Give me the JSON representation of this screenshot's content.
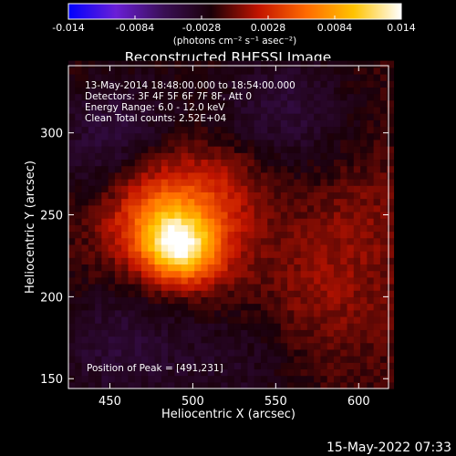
{
  "chart_data": {
    "type": "heatmap",
    "title": "Reconstructed RHESSI Image",
    "xlabel": "Heliocentric X (arcsec)",
    "ylabel": "Heliocentric Y (arcsec)",
    "xlim": [
      425,
      618
    ],
    "ylim": [
      144,
      341
    ],
    "xticks": [
      450,
      500,
      550,
      600
    ],
    "yticks": [
      150,
      200,
      250,
      300
    ],
    "colorbar": {
      "min": -0.014,
      "max": 0.014,
      "ticks": [
        "-0.014",
        "-0.0084",
        "-0.0028",
        "0.0028",
        "0.0084",
        "0.014"
      ],
      "label": "(photons cm⁻² s⁻¹ asec⁻²)",
      "colormap": [
        "#0000ff",
        "#6a1fd6",
        "#3a0f55",
        "#1a0008",
        "#c21400",
        "#ff6a00",
        "#ffc300",
        "#ffffff"
      ]
    },
    "annotations": [
      "13-May-2014 18:48:00.000 to 18:54:00.000",
      "Detectors: 3F 4F 5F 6F 7F 8F, Att 0",
      "Energy Range: 6.0 - 12.0 keV",
      "Clean     Total counts: 2.52E+04"
    ],
    "peak_label": "Position of Peak = [491,231]",
    "peak": {
      "x": 491,
      "y": 231,
      "value": 0.014
    },
    "sources": [
      {
        "x": 491,
        "y": 231,
        "amplitude": 0.01,
        "sigma": 14
      },
      {
        "x": 488,
        "y": 258,
        "amplitude": 0.0055,
        "sigma": 24
      },
      {
        "x": 472,
        "y": 243,
        "amplitude": 0.0035,
        "sigma": 20
      },
      {
        "x": 507,
        "y": 227,
        "amplitude": 0.003,
        "sigma": 18
      },
      {
        "x": 575,
        "y": 200,
        "amplitude": 0.002,
        "sigma": 30
      },
      {
        "x": 600,
        "y": 250,
        "amplitude": 0.0013,
        "sigma": 25
      },
      {
        "x": 525,
        "y": 268,
        "amplitude": 0.0018,
        "sigma": 18
      },
      {
        "x": 455,
        "y": 295,
        "amplitude": -0.0035,
        "sigma": 30
      },
      {
        "x": 555,
        "y": 315,
        "amplitude": -0.003,
        "sigma": 30
      },
      {
        "x": 455,
        "y": 170,
        "amplitude": -0.003,
        "sigma": 28
      },
      {
        "x": 530,
        "y": 162,
        "amplitude": -0.0022,
        "sigma": 30
      }
    ]
  },
  "footer": {
    "timestamp": "15-May-2022 07:33"
  }
}
